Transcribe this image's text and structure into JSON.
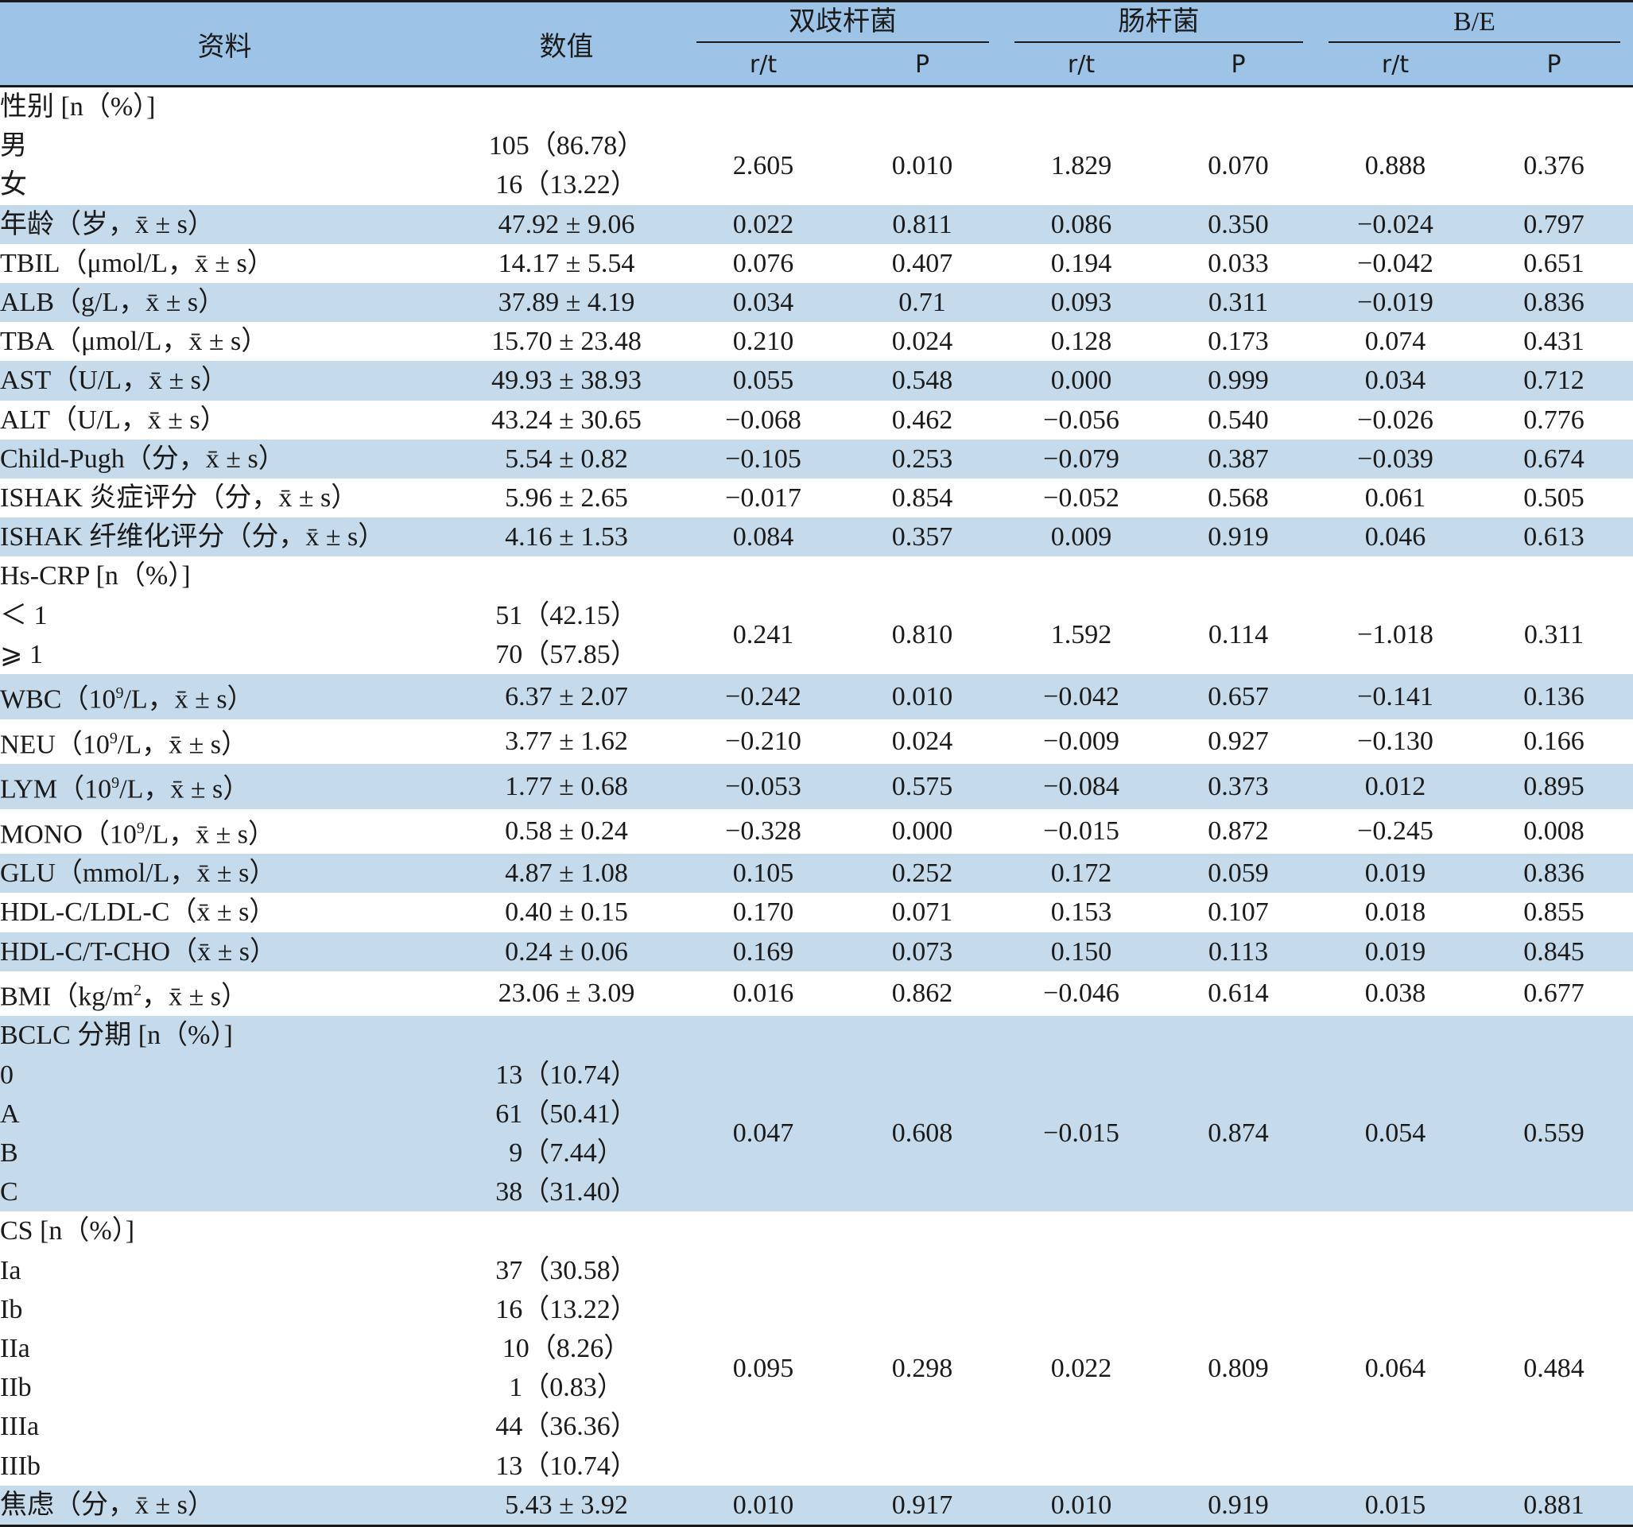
{
  "header": {
    "col_ziliao": "资料",
    "col_shuzhi": "数值",
    "groups": [
      "双歧杆菌",
      "肠杆菌",
      "B/E"
    ],
    "sub": [
      "r/t",
      "P",
      "r/t",
      "P",
      "r/t",
      "P"
    ]
  },
  "rows": {
    "sex": {
      "label": "性别 [n（%）]",
      "items": [
        {
          "label": "男",
          "value": "105（86.78）"
        },
        {
          "label": "女",
          "value": "16（13.22）"
        }
      ],
      "stats": [
        "2.605",
        "0.010",
        "1.829",
        "0.070",
        "0.888",
        "0.376"
      ]
    },
    "age": {
      "label": "年龄（岁，x̄ ± s）",
      "value": "47.92 ± 9.06",
      "stats": [
        "0.022",
        "0.811",
        "0.086",
        "0.350",
        "−0.024",
        "0.797"
      ]
    },
    "tbil": {
      "label": "TBIL（μmol/L，x̄ ± s）",
      "value": "14.17 ± 5.54",
      "stats": [
        "0.076",
        "0.407",
        "0.194",
        "0.033",
        "−0.042",
        "0.651"
      ]
    },
    "alb": {
      "label": "ALB（g/L，x̄ ± s）",
      "value": "37.89 ± 4.19",
      "stats": [
        "0.034",
        "0.71",
        "0.093",
        "0.311",
        "−0.019",
        "0.836"
      ]
    },
    "tba": {
      "label": "TBA（μmol/L，x̄ ± s）",
      "value": "15.70 ± 23.48",
      "stats": [
        "0.210",
        "0.024",
        "0.128",
        "0.173",
        "0.074",
        "0.431"
      ]
    },
    "ast": {
      "label": "AST（U/L，x̄ ± s）",
      "value": "49.93 ± 38.93",
      "stats": [
        "0.055",
        "0.548",
        "0.000",
        "0.999",
        "0.034",
        "0.712"
      ]
    },
    "alt": {
      "label": "ALT（U/L，x̄ ± s）",
      "value": "43.24 ± 30.65",
      "stats": [
        "−0.068",
        "0.462",
        "−0.056",
        "0.540",
        "−0.026",
        "0.776"
      ]
    },
    "childpugh": {
      "label": "Child-Pugh（分，x̄ ± s）",
      "value": "5.54 ± 0.82",
      "stats": [
        "−0.105",
        "0.253",
        "−0.079",
        "0.387",
        "−0.039",
        "0.674"
      ]
    },
    "ishak_inf": {
      "label": "ISHAK 炎症评分（分，x̄ ± s）",
      "value": "5.96 ± 2.65",
      "stats": [
        "−0.017",
        "0.854",
        "−0.052",
        "0.568",
        "0.061",
        "0.505"
      ]
    },
    "ishak_fib": {
      "label": "ISHAK 纤维化评分（分，x̄ ± s）",
      "value": "4.16 ± 1.53",
      "stats": [
        "0.084",
        "0.357",
        "0.009",
        "0.919",
        "0.046",
        "0.613"
      ]
    },
    "hscrp": {
      "label": "Hs-CRP [n（%）]",
      "items": [
        {
          "label": "＜ 1",
          "value": "51（42.15）"
        },
        {
          "label": "⩾ 1",
          "value": "70（57.85）"
        }
      ],
      "stats": [
        "0.241",
        "0.810",
        "1.592",
        "0.114",
        "−1.018",
        "0.311"
      ]
    },
    "wbc": {
      "label_pre": "WBC（10",
      "label_sup": "9",
      "label_post": "/L，x̄ ± s）",
      "value": "6.37 ± 2.07",
      "stats": [
        "−0.242",
        "0.010",
        "−0.042",
        "0.657",
        "−0.141",
        "0.136"
      ]
    },
    "neu": {
      "label_pre": "NEU（10",
      "label_sup": "9",
      "label_post": "/L，x̄ ± s）",
      "value": "3.77 ± 1.62",
      "stats": [
        "−0.210",
        "0.024",
        "−0.009",
        "0.927",
        "−0.130",
        "0.166"
      ]
    },
    "lym": {
      "label_pre": "LYM（10",
      "label_sup": "9",
      "label_post": "/L，x̄ ± s）",
      "value": "1.77 ± 0.68",
      "stats": [
        "−0.053",
        "0.575",
        "−0.084",
        "0.373",
        "0.012",
        "0.895"
      ]
    },
    "mono": {
      "label_pre": "MONO（10",
      "label_sup": "9",
      "label_post": "/L，x̄ ± s）",
      "value": "0.58 ± 0.24",
      "stats": [
        "−0.328",
        "0.000",
        "−0.015",
        "0.872",
        "−0.245",
        "0.008"
      ]
    },
    "glu": {
      "label": "GLU（mmol/L，x̄ ± s）",
      "value": "4.87 ± 1.08",
      "stats": [
        "0.105",
        "0.252",
        "0.172",
        "0.059",
        "0.019",
        "0.836"
      ]
    },
    "hdl_ldl": {
      "label": "HDL-C/LDL-C（x̄ ± s）",
      "value": "0.40 ± 0.15",
      "stats": [
        "0.170",
        "0.071",
        "0.153",
        "0.107",
        "0.018",
        "0.855"
      ]
    },
    "hdl_tcho": {
      "label": "HDL-C/T-CHO（x̄ ± s）",
      "value": "0.24 ± 0.06",
      "stats": [
        "0.169",
        "0.073",
        "0.150",
        "0.113",
        "0.019",
        "0.845"
      ]
    },
    "bmi": {
      "label_pre": "BMI（kg/m",
      "label_sup": "2",
      "label_post": "，x̄ ± s）",
      "value": "23.06 ± 3.09",
      "stats": [
        "0.016",
        "0.862",
        "−0.046",
        "0.614",
        "0.038",
        "0.677"
      ]
    },
    "bclc": {
      "label": "BCLC 分期 [n（%）]",
      "items": [
        {
          "label": "0",
          "value": "13（10.74）"
        },
        {
          "label": "A",
          "value": "61（50.41）"
        },
        {
          "label": "B",
          "value": "9（7.44）"
        },
        {
          "label": "C",
          "value": "38（31.40）"
        }
      ],
      "stats": [
        "0.047",
        "0.608",
        "−0.015",
        "0.874",
        "0.054",
        "0.559"
      ]
    },
    "cs": {
      "label": "CS [n（%）]",
      "items": [
        {
          "label": "Ia",
          "value": "37（30.58）"
        },
        {
          "label": "Ib",
          "value": "16（13.22）"
        },
        {
          "label": "IIa",
          "value": "10（8.26）"
        },
        {
          "label": "IIb",
          "value": "1（0.83）"
        },
        {
          "label": "IIIa",
          "value": "44（36.36）"
        },
        {
          "label": "IIIb",
          "value": "13（10.74）"
        }
      ],
      "stats": [
        "0.095",
        "0.298",
        "0.022",
        "0.809",
        "0.064",
        "0.484"
      ]
    },
    "anxiety": {
      "label": "焦虑（分，x̄ ± s）",
      "value": "5.43 ± 3.92",
      "stats": [
        "0.010",
        "0.917",
        "0.010",
        "0.919",
        "0.015",
        "0.881"
      ]
    }
  }
}
